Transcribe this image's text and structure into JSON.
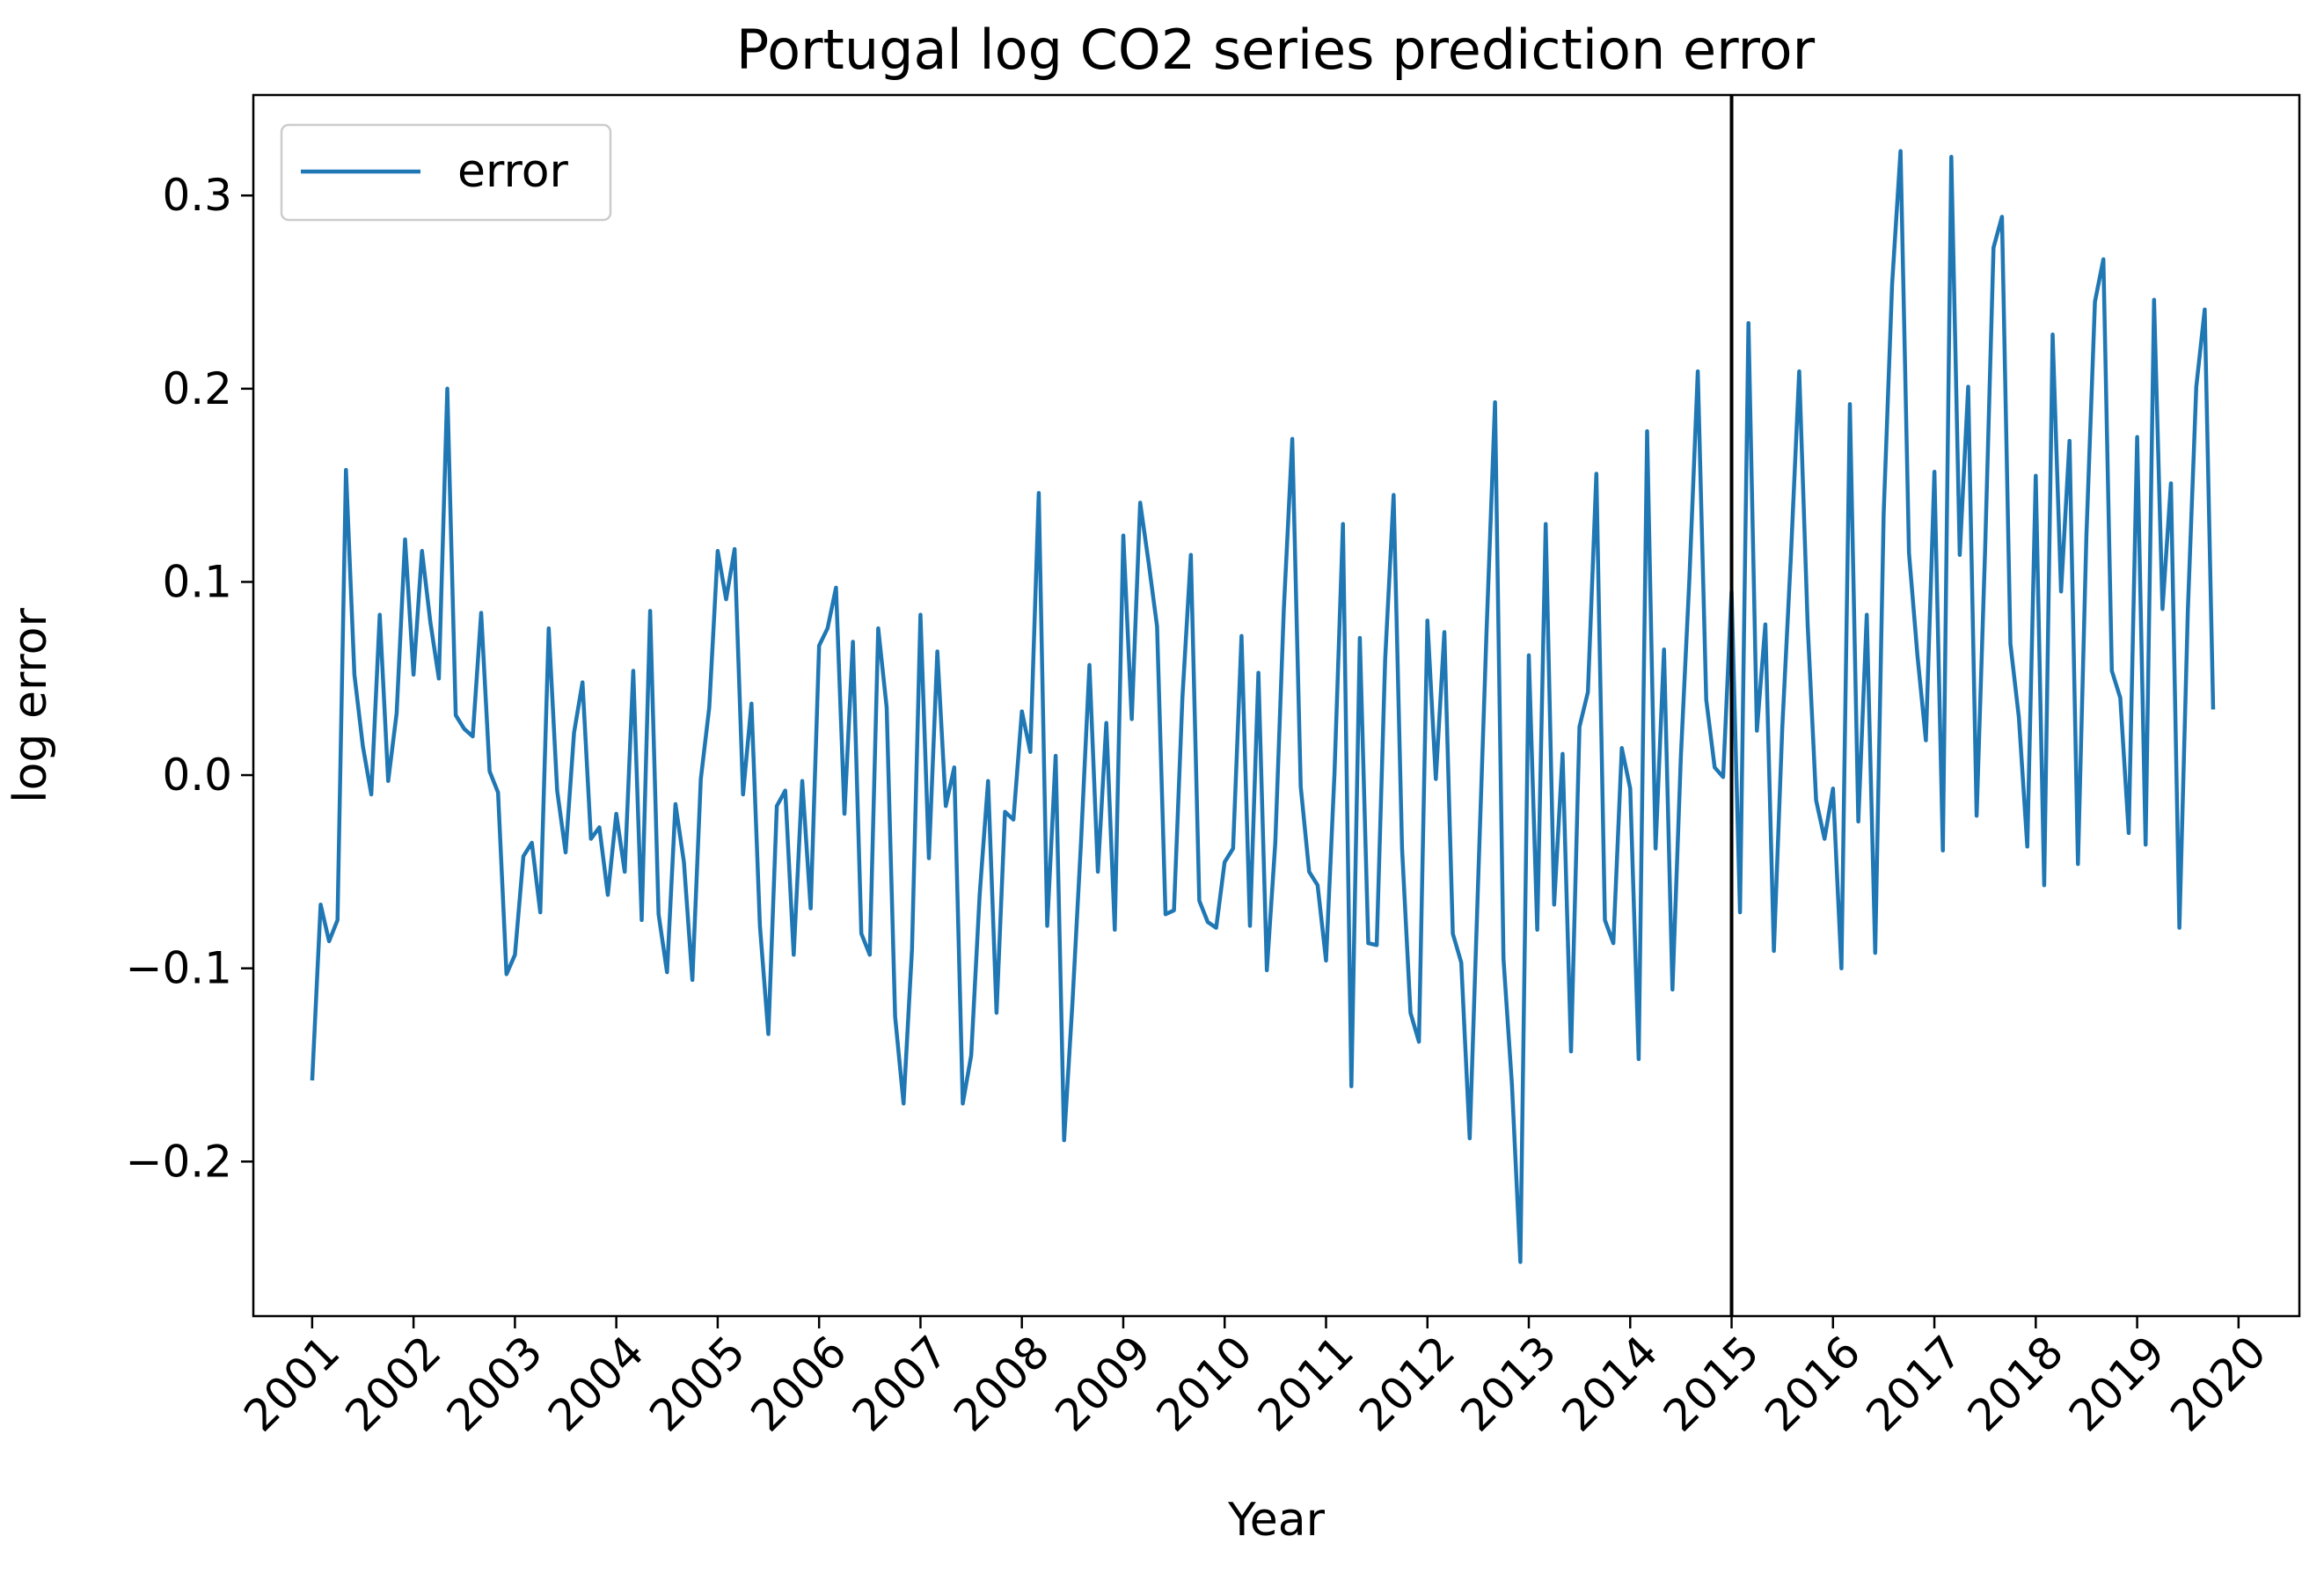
{
  "chart_data": {
    "type": "line",
    "title": "Portugal log CO2 series prediction error",
    "xlabel": "Year",
    "ylabel": "log error",
    "xlim": [
      2000.42,
      2020.6
    ],
    "ylim": [
      -0.28,
      0.352
    ],
    "x_ticks": [
      2001,
      2002,
      2003,
      2004,
      2005,
      2006,
      2007,
      2008,
      2009,
      2010,
      2011,
      2012,
      2013,
      2014,
      2015,
      2016,
      2017,
      2018,
      2019,
      2020
    ],
    "x_tick_labels": [
      "2001",
      "2002",
      "2003",
      "2004",
      "2005",
      "2006",
      "2007",
      "2008",
      "2009",
      "2010",
      "2011",
      "2012",
      "2013",
      "2014",
      "2015",
      "2016",
      "2017",
      "2018",
      "2019",
      "2020"
    ],
    "y_ticks": [
      -0.2,
      -0.1,
      0.0,
      0.1,
      0.2,
      0.3
    ],
    "y_tick_labels": [
      "−0.2",
      "−0.1",
      "0.0",
      "0.1",
      "0.2",
      "0.3"
    ],
    "grid": false,
    "legend": {
      "position": "upper-left",
      "entries": [
        "error"
      ]
    },
    "vertical_line": {
      "x": 2015.0,
      "color": "#000000"
    },
    "series": [
      {
        "name": "error",
        "color": "#1f77b4",
        "x_start": 2001.0,
        "x_step": 0.0833333,
        "values": [
          -0.158,
          -0.067,
          -0.086,
          -0.075,
          0.158,
          0.052,
          0.015,
          -0.01,
          0.083,
          -0.003,
          0.032,
          0.122,
          0.052,
          0.116,
          0.079,
          0.05,
          0.2,
          0.031,
          0.024,
          0.02,
          0.084,
          0.002,
          -0.009,
          -0.103,
          -0.093,
          -0.042,
          -0.035,
          -0.071,
          0.076,
          -0.008,
          -0.04,
          0.022,
          0.048,
          -0.033,
          -0.027,
          -0.062,
          -0.02,
          -0.05,
          0.054,
          -0.075,
          0.085,
          -0.072,
          -0.102,
          -0.015,
          -0.045,
          -0.106,
          -0.002,
          0.035,
          0.116,
          0.091,
          0.117,
          -0.01,
          0.037,
          -0.078,
          -0.134,
          -0.016,
          -0.008,
          -0.093,
          -0.003,
          -0.069,
          0.067,
          0.076,
          0.097,
          -0.02,
          0.069,
          -0.082,
          -0.093,
          0.076,
          0.035,
          -0.125,
          -0.17,
          -0.09,
          0.083,
          -0.043,
          0.064,
          -0.016,
          0.004,
          -0.17,
          -0.145,
          -0.062,
          -0.003,
          -0.123,
          -0.019,
          -0.023,
          0.033,
          0.012,
          0.146,
          -0.078,
          0.01,
          -0.189,
          -0.117,
          -0.035,
          0.057,
          -0.05,
          0.027,
          -0.08,
          0.124,
          0.029,
          0.141,
          0.11,
          0.077,
          -0.072,
          -0.07,
          0.04,
          0.114,
          -0.065,
          -0.076,
          -0.079,
          -0.045,
          -0.038,
          0.072,
          -0.078,
          0.053,
          -0.101,
          -0.035,
          0.086,
          0.174,
          -0.006,
          -0.05,
          -0.057,
          -0.096,
          0.001,
          0.13,
          -0.161,
          0.071,
          -0.087,
          -0.088,
          0.06,
          0.145,
          -0.038,
          -0.123,
          -0.138,
          0.08,
          -0.002,
          0.074,
          -0.082,
          -0.097,
          -0.188,
          -0.055,
          0.075,
          0.193,
          -0.095,
          -0.16,
          -0.252,
          0.062,
          -0.08,
          0.13,
          -0.067,
          0.011,
          -0.143,
          0.025,
          0.043,
          0.156,
          -0.075,
          -0.087,
          0.014,
          -0.007,
          -0.147,
          0.178,
          -0.038,
          0.065,
          -0.111,
          0.01,
          0.101,
          0.209,
          0.039,
          0.004,
          -0.001,
          0.095,
          -0.071,
          0.234,
          0.023,
          0.078,
          -0.091,
          0.025,
          0.112,
          0.209,
          0.078,
          -0.013,
          -0.033,
          -0.007,
          -0.1,
          0.192,
          -0.024,
          0.083,
          -0.092,
          0.135,
          0.254,
          0.323,
          0.115,
          0.062,
          0.018,
          0.157,
          -0.039,
          0.32,
          0.114,
          0.201,
          -0.021,
          0.116,
          0.273,
          0.289,
          0.068,
          0.03,
          -0.037,
          0.155,
          -0.057,
          0.228,
          0.095,
          0.173,
          -0.046,
          0.124,
          0.245,
          0.267,
          0.054,
          0.04,
          -0.03,
          0.175,
          -0.036,
          0.246,
          0.086,
          0.151,
          -0.079,
          0.085,
          0.201,
          0.241,
          0.034
        ]
      }
    ]
  }
}
